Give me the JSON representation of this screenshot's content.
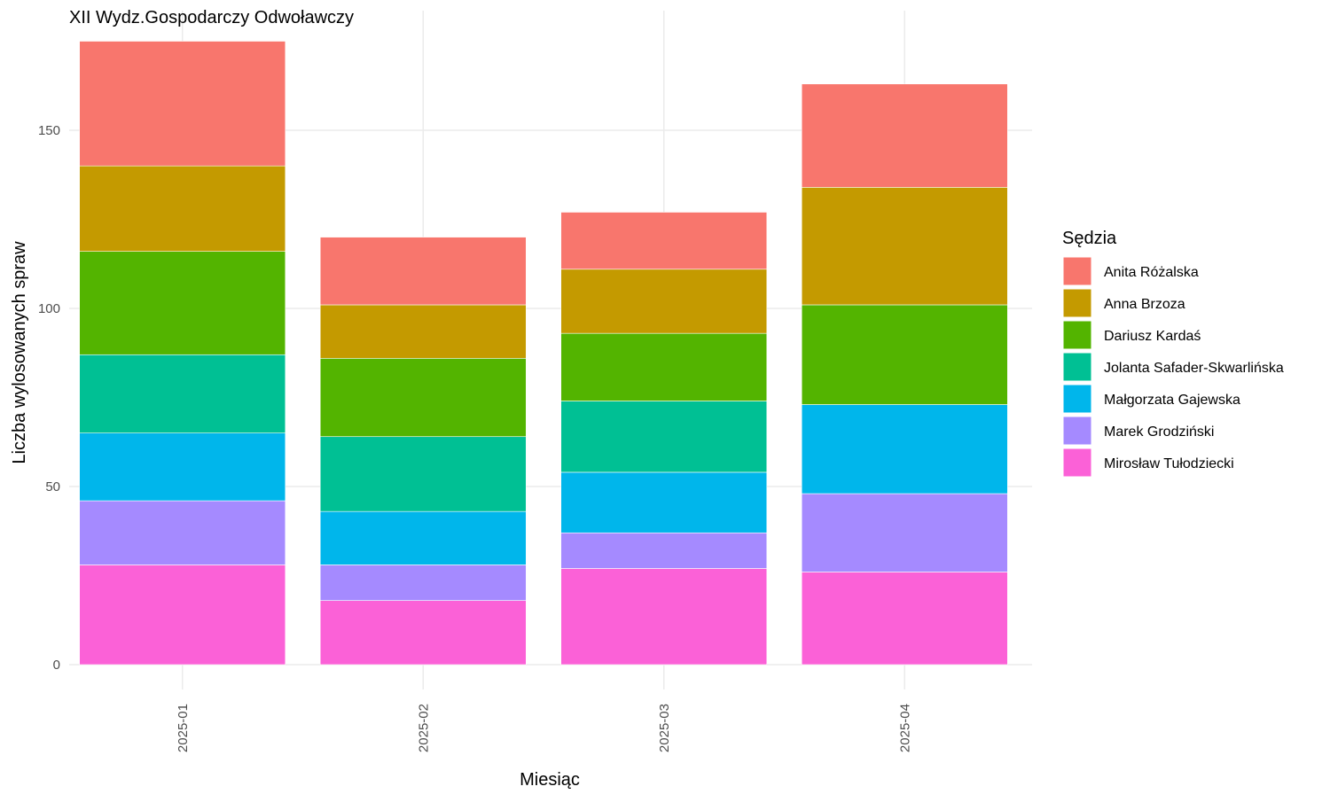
{
  "chart_data": {
    "type": "bar",
    "stacked": true,
    "title": "XII Wydz.Gospodarczy Odwoławczy",
    "xlabel": "Miesiąc",
    "ylabel": "Liczba wylosowanych spraw",
    "categories": [
      "2025-01",
      "2025-02",
      "2025-03",
      "2025-04"
    ],
    "ylim": [
      0,
      175
    ],
    "yticks": [
      0,
      50,
      100,
      150
    ],
    "grid": true,
    "legend": {
      "title": "Sędzia",
      "placement": "right"
    },
    "series": [
      {
        "name": "Anita Różalska",
        "color": "#F8766D",
        "values": [
          35,
          19,
          16,
          29
        ]
      },
      {
        "name": "Anna Brzoza",
        "color": "#C49A00",
        "values": [
          24,
          15,
          18,
          33
        ]
      },
      {
        "name": "Dariusz Kardaś",
        "color": "#53B400",
        "values": [
          29,
          22,
          19,
          28
        ]
      },
      {
        "name": "Jolanta Safader-Skwarlińska",
        "color": "#00C094",
        "values": [
          22,
          21,
          20,
          0
        ]
      },
      {
        "name": "Małgorzata Gajewska",
        "color": "#00B6EB",
        "values": [
          19,
          15,
          17,
          25
        ]
      },
      {
        "name": "Marek Grodziński",
        "color": "#A58AFF",
        "values": [
          18,
          10,
          10,
          22
        ]
      },
      {
        "name": "Mirosław Tułodziecki",
        "color": "#FB61D7",
        "values": [
          28,
          18,
          27,
          26
        ]
      }
    ]
  }
}
